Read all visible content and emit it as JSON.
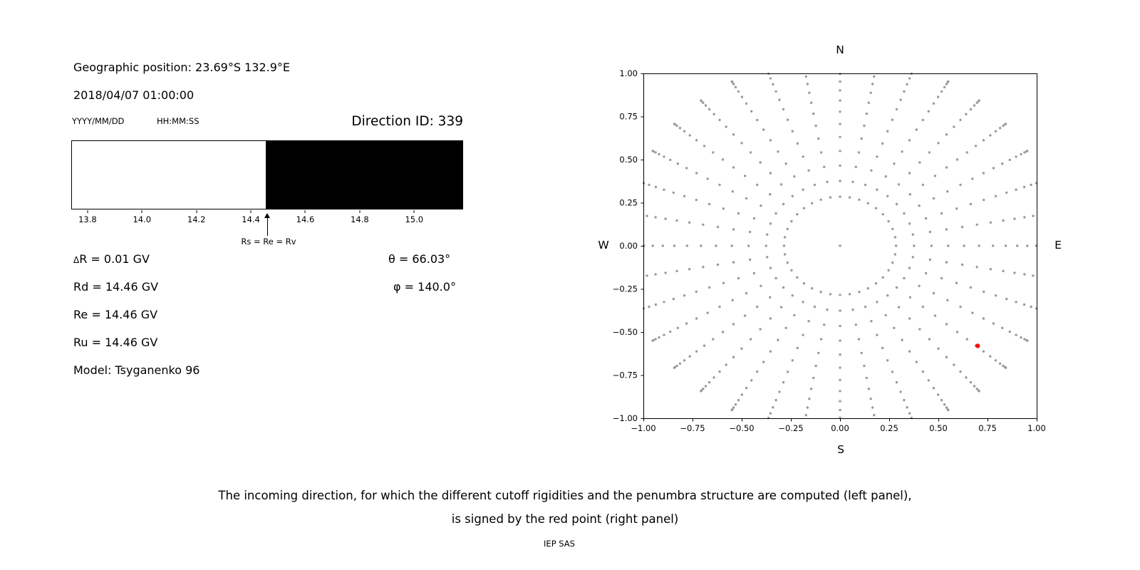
{
  "header": {
    "geo_position": "Geographic position: 23.69°S 132.9°E",
    "datetime": "2018/04/07 01:00:00",
    "date_format_hint": "YYYY/MM/DD",
    "time_format_hint": "HH:MM:SS",
    "direction_id": "Direction ID: 339"
  },
  "left_values": {
    "delta_r": "ΔR = 0.01 GV",
    "rd": "Rd = 14.46 GV",
    "re": "Re = 14.46 GV",
    "ru": "Ru = 14.46 GV",
    "model": "Model: Tsyganenko 96",
    "theta": "θ = 66.03°",
    "phi": "φ = 140.0°"
  },
  "compass": {
    "north": "N",
    "south": "S",
    "east": "E",
    "west": "W"
  },
  "caption": {
    "line1": "The incoming direction, for which the different cutoff rigidities and the penumbra structure are computed (left panel),",
    "line2": "is signed by the red point (right panel)"
  },
  "credit": "IEP SAS",
  "chart_data": [
    {
      "type": "bar",
      "name": "penumbra-structure",
      "description": "Penumbra structure: allowed (white) and forbidden (black) rigidity bands in GV",
      "xlim": [
        13.74,
        15.18
      ],
      "tick_values": [
        13.8,
        14.0,
        14.2,
        14.4,
        14.6,
        14.8,
        15.0
      ],
      "tick_labels": [
        "13.8",
        "14.0",
        "14.2",
        "14.4",
        "14.6",
        "14.8",
        "15.0"
      ],
      "regions": [
        {
          "from": 13.74,
          "to": 14.455,
          "state": "allowed",
          "color": "#ffffff"
        },
        {
          "from": 14.455,
          "to": 15.18,
          "state": "forbidden",
          "color": "#000000"
        }
      ],
      "annotation": {
        "label": "Rs = Re = Rv",
        "x": 14.46
      }
    },
    {
      "type": "scatter",
      "name": "incoming-directions",
      "description": "Grid of incoming directions (gray dots) with selected direction marked by red point",
      "xlim": [
        -1.0,
        1.0
      ],
      "ylim": [
        -1.0,
        1.0
      ],
      "xtick_values": [
        -1.0,
        -0.75,
        -0.5,
        -0.25,
        0.0,
        0.25,
        0.5,
        0.75,
        1.0
      ],
      "xtick_labels": [
        "−1.00",
        "−0.75",
        "−0.50",
        "−0.25",
        "0.00",
        "0.25",
        "0.50",
        "0.75",
        "1.00"
      ],
      "ytick_values": [
        -1.0,
        -0.75,
        -0.5,
        -0.25,
        0.0,
        0.25,
        0.5,
        0.75,
        1.0
      ],
      "ytick_labels": [
        "−1.00",
        "−0.75",
        "−0.50",
        "−0.25",
        "0.00",
        "0.25",
        "0.50",
        "0.75",
        "1.00"
      ],
      "compass_labels": {
        "top": "N",
        "bottom": "S",
        "left": "W",
        "right": "E"
      },
      "direction_grid": {
        "azimuth_step_deg": 10,
        "zenith_min_deg": 15,
        "zenith_max_deg": 90,
        "zenith_step_deg": 5,
        "radius_scale": 1.1,
        "include_center_dot": true,
        "dot_color": "#9a9a9a"
      },
      "red_point": {
        "x": 0.7,
        "y": -0.58,
        "theta_deg": 66.03,
        "phi_deg": 140.0,
        "color": "#ee1111"
      }
    }
  ]
}
